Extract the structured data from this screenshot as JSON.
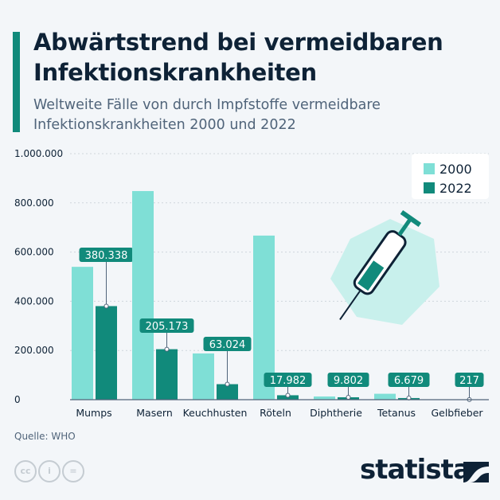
{
  "title": "Abwärtstrend bei vermeidbaren Infektionskrankheiten",
  "subtitle": "Weltweite Fälle von durch Impfstoffe vermeidbare Infektionskrankheiten 2000 und 2022",
  "source": "Quelle: WHO",
  "logo": "statista",
  "license_icons": [
    "cc-icon",
    "person-icon",
    "equals-icon"
  ],
  "license_text": [
    "cc",
    "i",
    "="
  ],
  "colors": {
    "s2000": "#7fdfd6",
    "s2022": "#118a7b",
    "text": "#0e2236"
  },
  "chart_data": {
    "type": "bar",
    "title": "Abwärtstrend bei vermeidbaren Infektionskrankheiten",
    "categories": [
      "Mumps",
      "Masern",
      "Keuchhusten",
      "Röteln",
      "Diphtherie",
      "Tetanus",
      "Gelbfieber"
    ],
    "series": [
      {
        "name": "2000",
        "values": [
          540000,
          848000,
          188000,
          667000,
          13000,
          24000,
          0
        ]
      },
      {
        "name": "2022",
        "values": [
          380338,
          205173,
          63024,
          17982,
          9802,
          6679,
          217
        ]
      }
    ],
    "data_labels_2022": [
      "380.338",
      "205.173",
      "63.024",
      "17.982",
      "9.802",
      "6.679",
      "217"
    ],
    "yticks": [
      0,
      200000,
      400000,
      600000,
      800000,
      1000000
    ],
    "ytick_labels": [
      "0",
      "200.000",
      "400.000",
      "600.000",
      "800.000",
      "1.000.000"
    ],
    "ylim": [
      0,
      1000000
    ],
    "xlabel": "",
    "ylabel": "",
    "legend_position": "top-right",
    "grid": true
  }
}
